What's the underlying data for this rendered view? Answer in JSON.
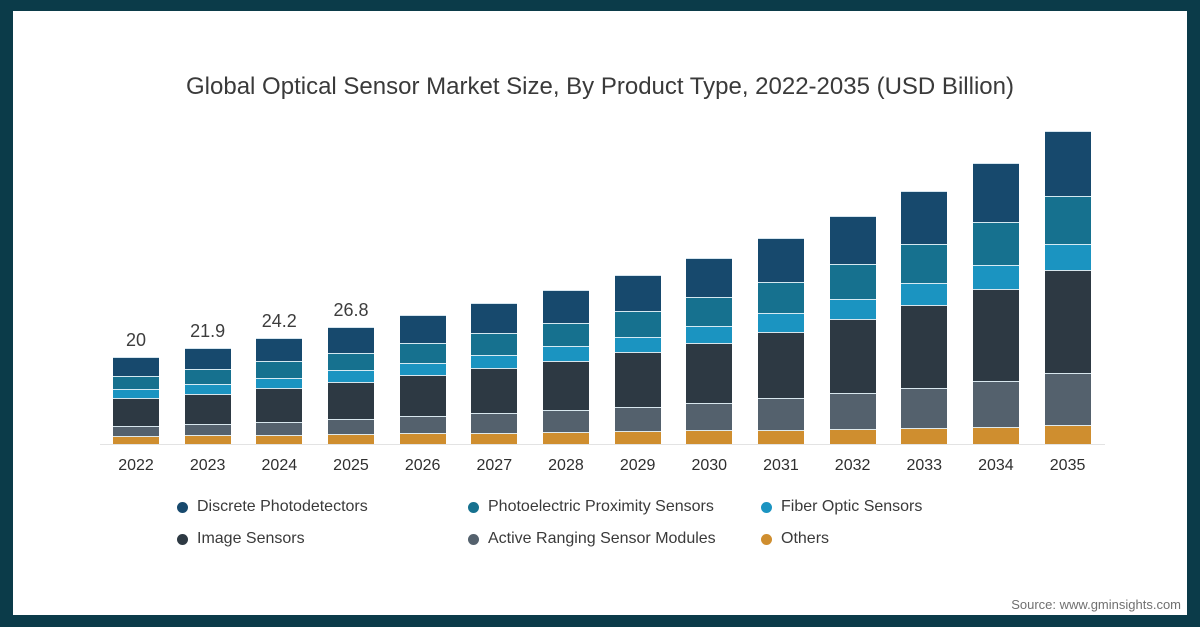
{
  "title": "Global Optical Sensor Market Size, By Product Type, 2022-2035 (USD Billion)",
  "source": "Source: www.gminsights.com",
  "frame_color": "#0b3b49",
  "chart_data": {
    "type": "bar",
    "stacked": true,
    "title": "Global Optical Sensor Market Size, By Product Type, 2022-2035 (USD Billion)",
    "xlabel": "",
    "ylabel": "USD Billion",
    "ylim": [
      0,
      75
    ],
    "grid": false,
    "legend_position": "bottom",
    "categories": [
      "2022",
      "2023",
      "2024",
      "2025",
      "2026",
      "2027",
      "2028",
      "2029",
      "2030",
      "2031",
      "2032",
      "2033",
      "2034",
      "2035"
    ],
    "totals": [
      20,
      21.9,
      24.2,
      26.8,
      29.5,
      32.4,
      35.4,
      38.8,
      42.7,
      47.2,
      52.2,
      57.9,
      64.3,
      71.8
    ],
    "total_labels": [
      "20",
      "21.9",
      "24.2",
      "26.8",
      "",
      "",
      "",
      "",
      "",
      "",
      "",
      "",
      "",
      ""
    ],
    "series": [
      {
        "name": "Others",
        "color": "#cf8e2f",
        "values": [
          1.9,
          2.02,
          2.17,
          2.32,
          2.48,
          2.63,
          2.78,
          2.93,
          3.11,
          3.31,
          3.51,
          3.73,
          3.97,
          4.24
        ]
      },
      {
        "name": "Active Ranging Sensor Modules",
        "color": "#54616d",
        "values": [
          2.3,
          2.61,
          2.98,
          3.4,
          3.86,
          4.37,
          4.92,
          5.55,
          6.28,
          7.13,
          8.09,
          9.21,
          10.48,
          11.99
        ]
      },
      {
        "name": "Image Sensors",
        "color": "#2d3943",
        "values": [
          6.26,
          6.88,
          7.64,
          8.49,
          9.39,
          10.35,
          11.36,
          12.5,
          13.81,
          15.33,
          17.02,
          18.96,
          21.14,
          23.69
        ]
      },
      {
        "name": "Fiber Optic Sensors",
        "color": "#1b94c1",
        "values": [
          2.06,
          2.22,
          2.41,
          2.63,
          2.85,
          3.08,
          3.3,
          3.56,
          3.85,
          4.18,
          4.53,
          4.93,
          5.38,
          5.89
        ]
      },
      {
        "name": "Photoelectric Proximity Sensors",
        "color": "#16718f",
        "values": [
          3.06,
          3.35,
          3.71,
          4.11,
          4.52,
          4.97,
          5.43,
          5.96,
          6.56,
          7.25,
          8.03,
          8.91,
          9.9,
          11.06
        ]
      },
      {
        "name": "Discrete Photodetectors",
        "color": "#17496d",
        "values": [
          4.4,
          4.8,
          5.28,
          5.82,
          6.38,
          6.98,
          7.59,
          8.28,
          9.08,
          9.99,
          11.0,
          12.15,
          13.43,
          14.93
        ]
      }
    ],
    "legend_columns": [
      [
        {
          "label": "Discrete Photodetectors",
          "color": "#17496d"
        },
        {
          "label": "Image Sensors",
          "color": "#2d3943"
        }
      ],
      [
        {
          "label": "Photoelectric Proximity Sensors",
          "color": "#16718f"
        },
        {
          "label": "Active Ranging Sensor Modules",
          "color": "#54616d"
        }
      ],
      [
        {
          "label": "Fiber Optic Sensors",
          "color": "#1b94c1"
        },
        {
          "label": "Others",
          "color": "#cf8e2f"
        }
      ]
    ]
  }
}
